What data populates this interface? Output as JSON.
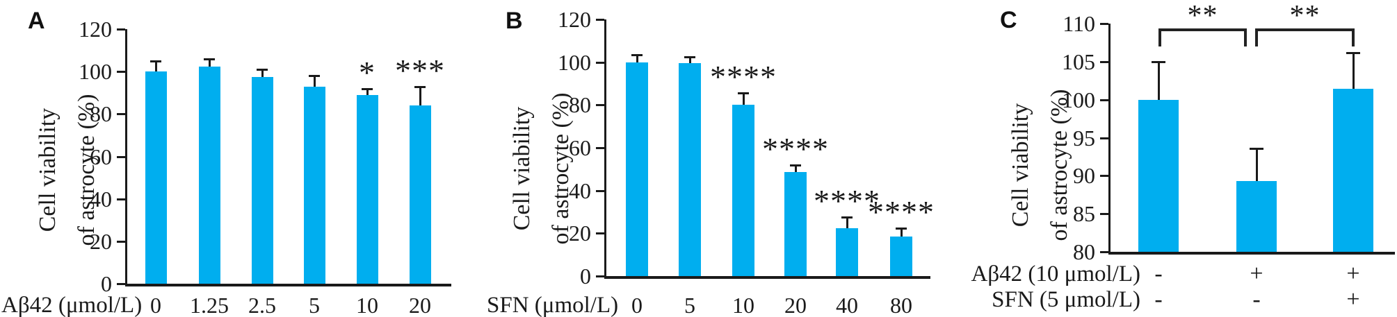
{
  "figure": {
    "background": "#ffffff",
    "bar_color": "#00AEEF",
    "axis_color": "#1a1a1a"
  },
  "chart_data": [
    {
      "type": "bar",
      "panel": "A",
      "title": "",
      "ylabel": "Cell viability of astrocyte (%)",
      "ylabel_lines": [
        "Cell viability",
        "of astrocyte (%)"
      ],
      "xlabel": "Aβ42 (μmol/L)",
      "categories": [
        "0",
        "1.25",
        "2.5",
        "5",
        "10",
        "20"
      ],
      "values": [
        100,
        102.5,
        97.5,
        93,
        89,
        84
      ],
      "errors_plus": [
        5,
        3.5,
        3.5,
        5,
        3,
        9
      ],
      "significance": [
        "",
        "",
        "",
        "",
        "*",
        "***"
      ],
      "ylim": [
        0,
        120
      ],
      "yticks": [
        0,
        20,
        40,
        60,
        80,
        100,
        120
      ],
      "grid": false,
      "legend": null,
      "bar_color": "#00AEEF"
    },
    {
      "type": "bar",
      "panel": "B",
      "title": "",
      "ylabel": "Cell viability of astrocyte (%)",
      "ylabel_lines": [
        "Cell viability",
        "of astrocyte (%)"
      ],
      "xlabel": "SFN (μmol/L)",
      "categories": [
        "0",
        "5",
        "10",
        "20",
        "40",
        "80"
      ],
      "values": [
        100,
        99.5,
        80,
        48.5,
        22.5,
        18.5
      ],
      "errors_plus": [
        3.5,
        3,
        5.5,
        3.5,
        5,
        4
      ],
      "significance": [
        "",
        "",
        "****",
        "****",
        "****",
        "****"
      ],
      "ylim": [
        0,
        120
      ],
      "yticks": [
        0,
        20,
        40,
        60,
        80,
        100,
        120
      ],
      "grid": false,
      "legend": null,
      "bar_color": "#00AEEF"
    },
    {
      "type": "bar",
      "panel": "C",
      "title": "",
      "ylabel": "Cell viability of astrocyte (%)",
      "ylabel_lines": [
        "Cell viability",
        "of astrocyte (%)"
      ],
      "xlabel": "",
      "categories": [
        "1",
        "2",
        "3"
      ],
      "condition_rows": [
        {
          "label": "Aβ42 (10 μmol/L)",
          "values": [
            "-",
            "+",
            "+"
          ]
        },
        {
          "label": "SFN (5 μmol/L)",
          "values": [
            "-",
            "-",
            "+"
          ]
        }
      ],
      "values": [
        100,
        89.3,
        101.4
      ],
      "errors_plus": [
        5,
        4.3,
        4.8
      ],
      "significance": [
        "",
        "",
        ""
      ],
      "brackets": [
        {
          "from": 0,
          "to": 1,
          "label": "**"
        },
        {
          "from": 1,
          "to": 2,
          "label": "**"
        }
      ],
      "ylim": [
        80,
        110
      ],
      "yticks": [
        80,
        85,
        90,
        95,
        100,
        105,
        110
      ],
      "grid": false,
      "legend": null,
      "bar_color": "#00AEEF"
    }
  ]
}
